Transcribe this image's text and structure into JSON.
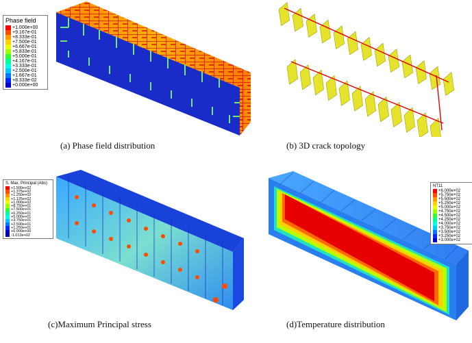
{
  "captions": {
    "a": "(a) Phase field distribution",
    "b": "(b) 3D crack topology",
    "c": "(c)Maximum Principal stress",
    "d": "(d)Temperature distribution"
  },
  "legend_a": {
    "title": "Phase field",
    "labels": [
      "+1.000e+00",
      "+9.167e-01",
      "+8.333e-01",
      "+7.500e-01",
      "+6.667e-01",
      "+5.833e-01",
      "+5.000e-01",
      "+4.167e-01",
      "+3.333e-01",
      "+2.500e-01",
      "+1.667e-01",
      "+8.333e-02",
      "+0.000e+00"
    ],
    "colors": [
      "#ff0000",
      "#ff4d00",
      "#ff9900",
      "#ffd200",
      "#e6ff00",
      "#9cff00",
      "#33ff33",
      "#00ff99",
      "#00ffe6",
      "#00c8ff",
      "#0078ff",
      "#0028ff",
      "#0000c8"
    ]
  },
  "legend_c": {
    "title": "S, Max. Principal (Abs)",
    "labels": [
      "+1.500e+02",
      "+1.375e+02",
      "+1.250e+02",
      "+1.125e+02",
      "+1.000e+02",
      "+8.750e+01",
      "+7.500e+01",
      "+6.250e+01",
      "+5.000e+01",
      "+3.750e+01",
      "+2.500e+01",
      "+1.250e+01",
      "+0.000e+00",
      "-1.013e+02"
    ],
    "colors": [
      "#ff0000",
      "#ff4d00",
      "#ff9900",
      "#ffd200",
      "#e6ff00",
      "#9cff00",
      "#33ff33",
      "#00ff99",
      "#00ffe6",
      "#00c8ff",
      "#0078ff",
      "#0028ff",
      "#0000c8",
      "#000090"
    ]
  },
  "legend_d": {
    "title": "NT11",
    "labels": [
      "+6.000e+02",
      "+5.750e+02",
      "+5.500e+02",
      "+5.250e+02",
      "+5.000e+02",
      "+4.750e+02",
      "+4.500e+02",
      "+4.250e+02",
      "+4.000e+02",
      "+3.750e+02",
      "+3.500e+02",
      "+3.250e+02",
      "+3.000e+02"
    ],
    "colors": [
      "#ff0000",
      "#ff4d00",
      "#ff9900",
      "#ffd200",
      "#e6ff00",
      "#9cff00",
      "#33ff33",
      "#00ff99",
      "#00ffe6",
      "#00c8ff",
      "#0078ff",
      "#0028ff",
      "#0000c8"
    ]
  }
}
